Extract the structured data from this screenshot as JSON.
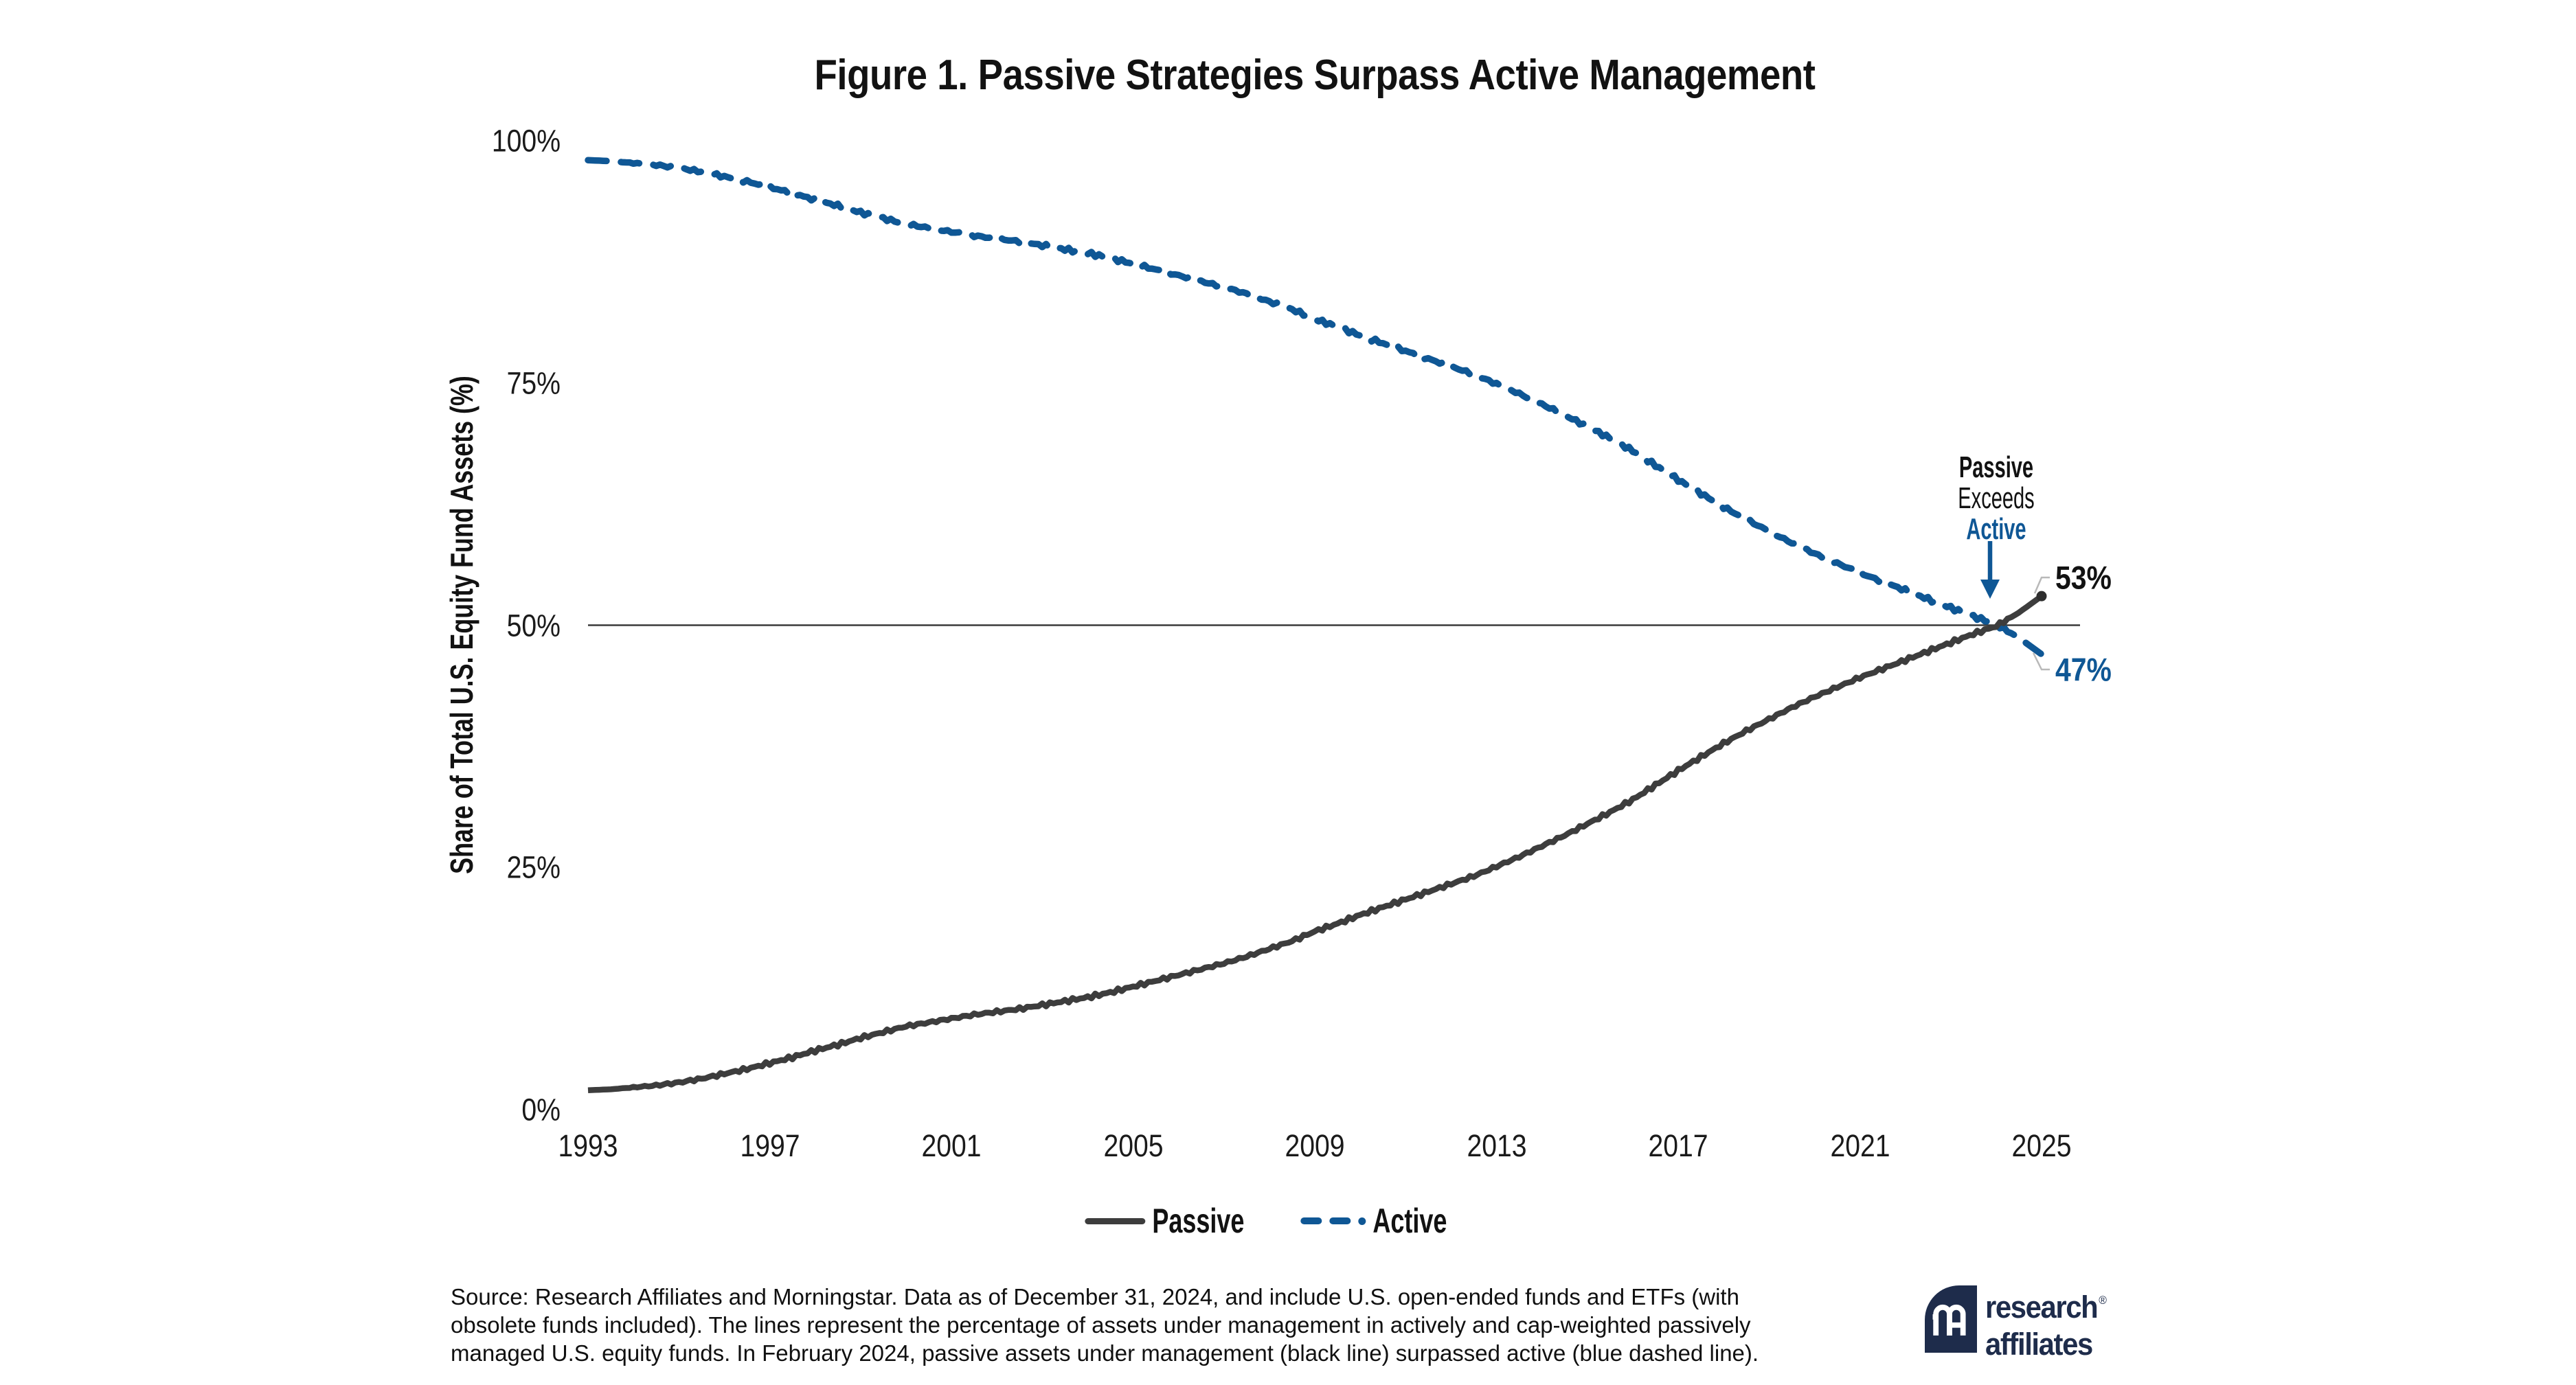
{
  "figure": {
    "title": "Figure 1. Passive Strategies Surpass Active Management",
    "y_axis": {
      "label": "Share of Total U.S. Equity Fund Assets (%)",
      "ticks": [
        "100%",
        "75%",
        "50%",
        "25%",
        "0%"
      ]
    },
    "x_axis": {
      "ticks": [
        "1993",
        "1997",
        "2001",
        "2005",
        "2009",
        "2013",
        "2017",
        "2021",
        "2025"
      ]
    },
    "legend": {
      "passive_label": "Passive",
      "active_label": "Active"
    },
    "annotation": {
      "line1": "Passive",
      "line2": "Exceeds",
      "line3": "Active"
    },
    "end_labels": {
      "passive": "53%",
      "active": "47%"
    },
    "source_lines": [
      "Source: Research Affiliates and Morningstar. Data as of December 31, 2024, and include U.S. open-ended funds and ETFs (with",
      "obsolete funds included). The lines represent the percentage of assets under management in actively and cap-weighted passively",
      "managed U.S. equity funds. In February 2024, passive assets under management (black line) surpassed active (blue dashed line)."
    ],
    "logo": {
      "word1": "research",
      "word2": "affiliates",
      "registered": "®"
    }
  },
  "colors": {
    "passive_line": "#3d3d3d",
    "active_blue": "#0f5795",
    "rule": "#3a3a3a",
    "connector": "#b9b9b9",
    "navy": "#1e2c4b"
  },
  "chart_data": {
    "type": "line",
    "title": "Figure 1. Passive Strategies Surpass Active Management",
    "xlabel": "",
    "ylabel": "Share of Total U.S. Equity Fund Assets (%)",
    "xlim": [
      1993,
      2025
    ],
    "ylim": [
      0,
      100
    ],
    "xticks": [
      1993,
      1997,
      2001,
      2005,
      2009,
      2013,
      2017,
      2021,
      2025
    ],
    "yticks": [
      0,
      25,
      50,
      75,
      100
    ],
    "grid": "none (single horizontal reference rule at 50%)",
    "legend_position": "bottom-center",
    "x": [
      1993,
      1993.5,
      1994,
      1994.5,
      1995,
      1995.5,
      1996,
      1996.5,
      1997,
      1997.5,
      1998,
      1998.5,
      1999,
      1999.5,
      2000,
      2000.5,
      2001,
      2001.5,
      2002,
      2002.5,
      2003,
      2003.5,
      2004,
      2004.5,
      2005,
      2005.5,
      2006,
      2006.5,
      2007,
      2007.5,
      2008,
      2008.5,
      2009,
      2009.5,
      2010,
      2010.5,
      2011,
      2011.5,
      2012,
      2012.5,
      2013,
      2013.5,
      2014,
      2014.5,
      2015,
      2015.5,
      2016,
      2016.5,
      2017,
      2017.5,
      2018,
      2018.5,
      2019,
      2019.5,
      2020,
      2020.5,
      2021,
      2021.5,
      2022,
      2022.5,
      2023,
      2023.5,
      2024,
      2024.5,
      2025
    ],
    "series": [
      {
        "name": "Passive",
        "style": "solid",
        "color": "#3d3d3d",
        "values": [
          2.0,
          2.1,
          2.3,
          2.5,
          2.8,
          3.2,
          3.7,
          4.2,
          4.8,
          5.4,
          6.1,
          6.7,
          7.4,
          8.0,
          8.6,
          9.0,
          9.4,
          9.8,
          10.1,
          10.4,
          10.8,
          11.2,
          11.6,
          12.1,
          12.7,
          13.3,
          13.9,
          14.5,
          15.1,
          15.8,
          16.6,
          17.4,
          18.4,
          19.2,
          20.1,
          20.9,
          21.7,
          22.5,
          23.3,
          24.1,
          25.1,
          26.1,
          27.2,
          28.3,
          29.5,
          30.7,
          32.0,
          33.5,
          35.0,
          36.4,
          37.8,
          39.1,
          40.3,
          41.5,
          42.6,
          43.6,
          44.6,
          45.5,
          46.4,
          47.3,
          48.2,
          49.1,
          49.9,
          51.3,
          53.0
        ]
      },
      {
        "name": "Active",
        "style": "dashed",
        "color": "#0f5795",
        "values": [
          98.0,
          97.9,
          97.7,
          97.5,
          97.2,
          96.8,
          96.3,
          95.8,
          95.2,
          94.6,
          93.9,
          93.3,
          92.6,
          92.0,
          91.4,
          91.0,
          90.6,
          90.2,
          89.9,
          89.6,
          89.2,
          88.8,
          88.4,
          87.9,
          87.3,
          86.7,
          86.1,
          85.5,
          84.9,
          84.2,
          83.4,
          82.6,
          81.6,
          80.8,
          79.9,
          79.1,
          78.3,
          77.5,
          76.7,
          75.9,
          74.9,
          73.9,
          72.8,
          71.7,
          70.5,
          69.3,
          68.0,
          66.5,
          65.0,
          63.6,
          62.2,
          60.9,
          59.7,
          58.5,
          57.4,
          56.4,
          55.4,
          54.5,
          53.6,
          52.7,
          51.8,
          50.9,
          50.1,
          48.7,
          47.0
        ]
      }
    ],
    "reference_line": {
      "value": 50,
      "label": "50%"
    },
    "crossover": {
      "date": "February 2024",
      "value": 50
    },
    "final_values": {
      "passive": 53,
      "active": 47,
      "as_of": "December 31, 2024"
    }
  }
}
